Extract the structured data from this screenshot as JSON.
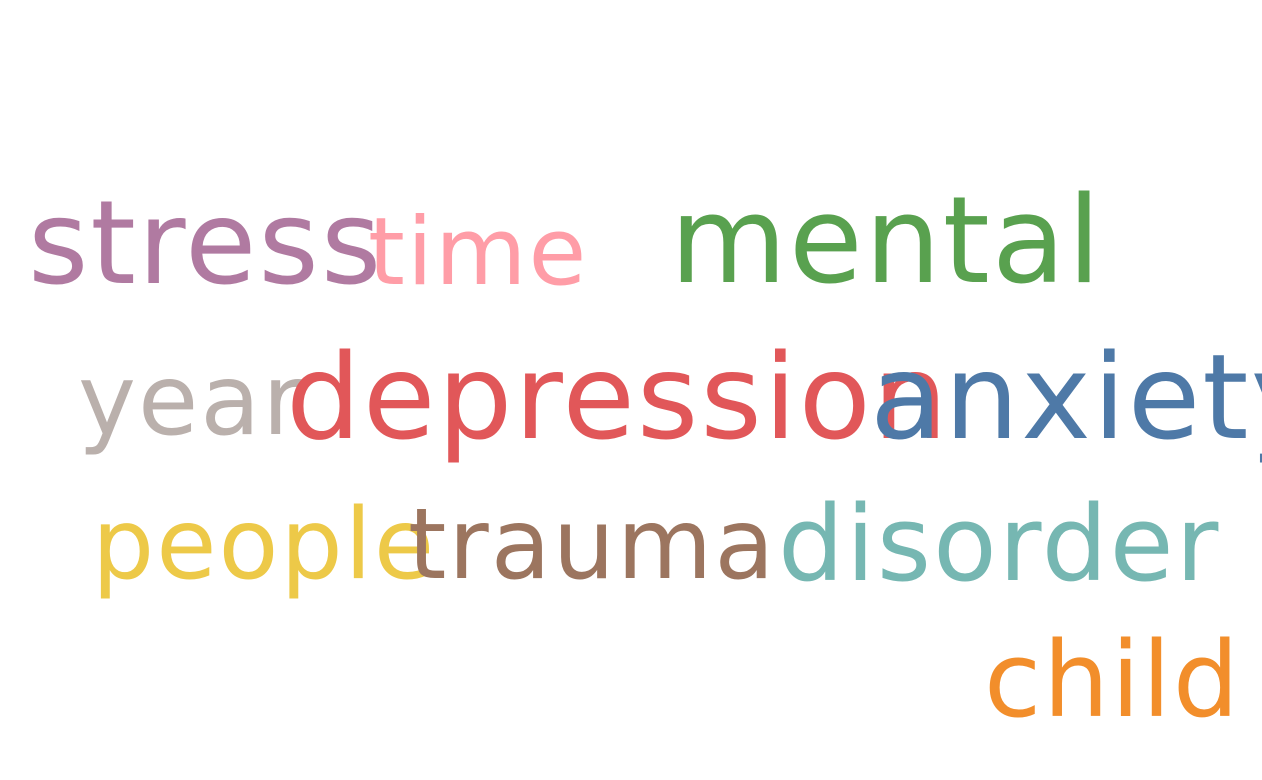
{
  "words": [
    {
      "text": "stress",
      "color": "#b07aa1"
    },
    {
      "text": "time",
      "color": "#ff9da7"
    },
    {
      "text": "mental",
      "color": "#59a14f"
    },
    {
      "text": "year",
      "color": "#bab0ac"
    },
    {
      "text": "depression",
      "color": "#e15759"
    },
    {
      "text": "anxiety",
      "color": "#4e79a7"
    },
    {
      "text": "people",
      "color": "#edc948"
    },
    {
      "text": "trauma",
      "color": "#9c755f"
    },
    {
      "text": "disorder",
      "color": "#76b7b2"
    },
    {
      "text": "child",
      "color": "#f28e2b"
    }
  ]
}
